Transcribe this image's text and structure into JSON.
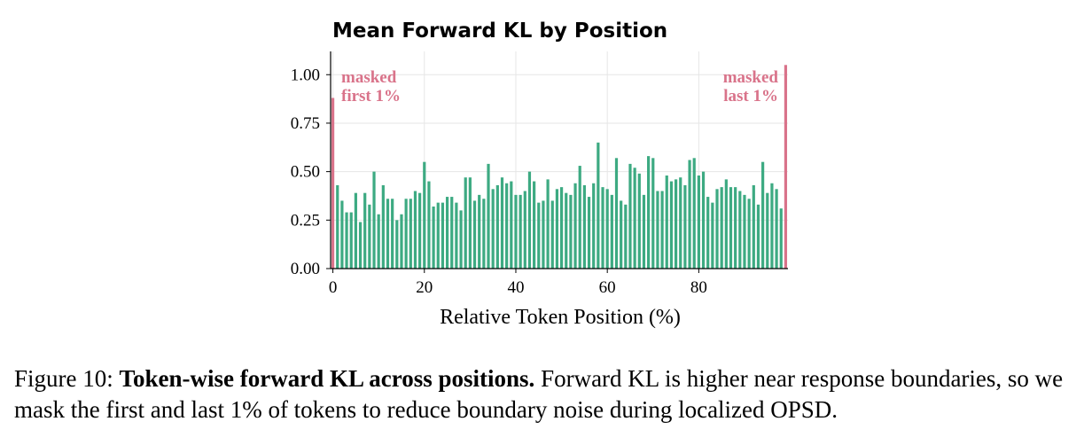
{
  "chart_data": {
    "type": "bar",
    "title": "Mean Forward KL by Position",
    "xlabel": "Relative Token Position (%)",
    "ylabel": "",
    "xlim": [
      -0.5,
      99.5
    ],
    "ylim": [
      0,
      1.12
    ],
    "xticks": [
      0,
      20,
      40,
      60,
      80
    ],
    "xtick_labels": [
      "0",
      "20",
      "40",
      "60",
      "80"
    ],
    "yticks": [
      0,
      0.25,
      0.5,
      0.75,
      1.0
    ],
    "ytick_labels": [
      "0.00",
      "0.25",
      "0.50",
      "0.75",
      "1.00"
    ],
    "grid": true,
    "colors": {
      "bars": "#3daa82",
      "masked": "#d9738a"
    },
    "x": [
      0,
      1,
      2,
      3,
      4,
      5,
      6,
      7,
      8,
      9,
      10,
      11,
      12,
      13,
      14,
      15,
      16,
      17,
      18,
      19,
      20,
      21,
      22,
      23,
      24,
      25,
      26,
      27,
      28,
      29,
      30,
      31,
      32,
      33,
      34,
      35,
      36,
      37,
      38,
      39,
      40,
      41,
      42,
      43,
      44,
      45,
      46,
      47,
      48,
      49,
      50,
      51,
      52,
      53,
      54,
      55,
      56,
      57,
      58,
      59,
      60,
      61,
      62,
      63,
      64,
      65,
      66,
      67,
      68,
      69,
      70,
      71,
      72,
      73,
      74,
      75,
      76,
      77,
      78,
      79,
      80,
      81,
      82,
      83,
      84,
      85,
      86,
      87,
      88,
      89,
      90,
      91,
      92,
      93,
      94,
      95,
      96,
      97,
      98,
      99
    ],
    "values": [
      0.88,
      0.43,
      0.35,
      0.29,
      0.29,
      0.39,
      0.24,
      0.39,
      0.33,
      0.5,
      0.28,
      0.43,
      0.36,
      0.36,
      0.25,
      0.28,
      0.36,
      0.36,
      0.4,
      0.39,
      0.55,
      0.45,
      0.32,
      0.34,
      0.34,
      0.37,
      0.37,
      0.34,
      0.3,
      0.47,
      0.47,
      0.35,
      0.38,
      0.36,
      0.54,
      0.41,
      0.43,
      0.47,
      0.44,
      0.45,
      0.38,
      0.38,
      0.4,
      0.5,
      0.45,
      0.34,
      0.35,
      0.46,
      0.35,
      0.41,
      0.42,
      0.39,
      0.38,
      0.44,
      0.53,
      0.43,
      0.37,
      0.44,
      0.65,
      0.42,
      0.41,
      0.38,
      0.57,
      0.35,
      0.33,
      0.54,
      0.52,
      0.49,
      0.38,
      0.58,
      0.57,
      0.4,
      0.4,
      0.48,
      0.45,
      0.46,
      0.47,
      0.43,
      0.56,
      0.57,
      0.48,
      0.5,
      0.37,
      0.34,
      0.41,
      0.42,
      0.46,
      0.42,
      0.42,
      0.4,
      0.38,
      0.36,
      0.43,
      0.33,
      0.55,
      0.39,
      0.44,
      0.41,
      0.31,
      1.05
    ],
    "masked_indices": [
      0,
      99
    ],
    "annotations": [
      {
        "line1": "masked",
        "line2": "first 1%",
        "anchor": "left"
      },
      {
        "line1": "masked",
        "line2": "last 1%",
        "anchor": "right"
      }
    ]
  },
  "caption": {
    "prefix": "Figure 10: ",
    "bold": "Token-wise forward KL across positions.",
    "text": " Forward KL is higher near response boundaries, so we mask the first and last 1% of tokens to reduce boundary noise during localized OPSD."
  }
}
